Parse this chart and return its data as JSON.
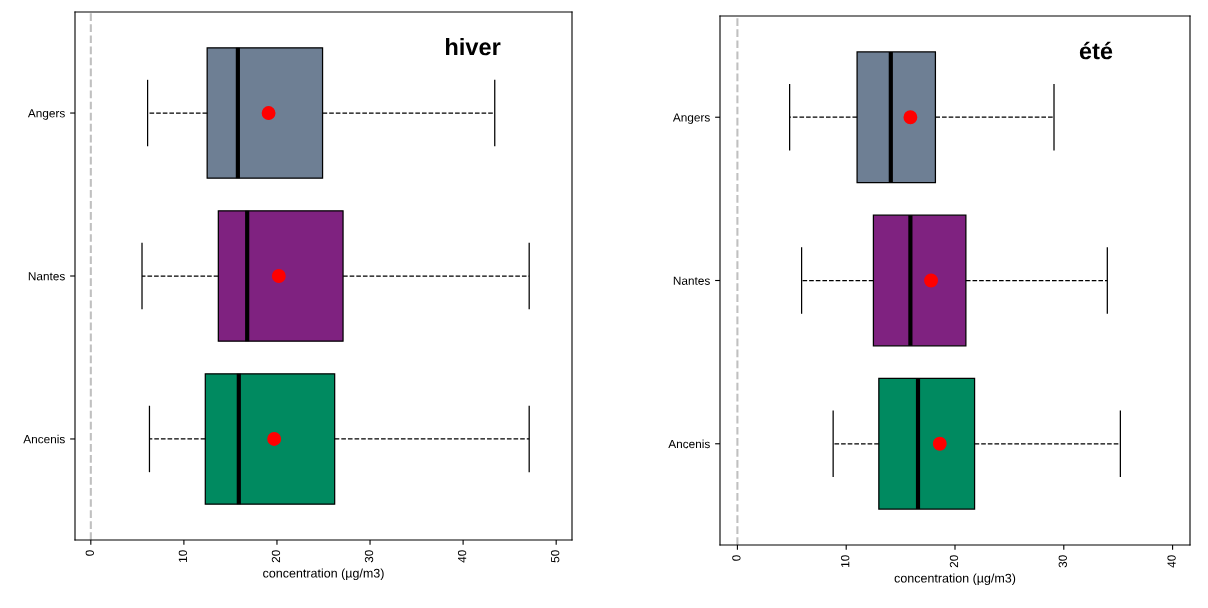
{
  "chart_data": [
    {
      "type": "box",
      "orientation": "horizontal",
      "xlabel": "concentration (µg/m3)",
      "annotations": [
        "hiver"
      ],
      "categories": [
        "Angers",
        "Nantes",
        "Ancenis"
      ],
      "colors": [
        "#6e7f94",
        "#7f2280",
        "#008a60"
      ],
      "boxes": [
        {
          "low": 6.1,
          "q1": 12.5,
          "median": 15.8,
          "q3": 24.9,
          "high": 43.4,
          "mean": 19.1
        },
        {
          "low": 5.5,
          "q1": 13.7,
          "median": 16.8,
          "q3": 27.1,
          "high": 47.1,
          "mean": 20.2
        },
        {
          "low": 6.3,
          "q1": 12.3,
          "median": 15.9,
          "q3": 26.2,
          "high": 47.1,
          "mean": 19.7
        }
      ],
      "xlim": [
        -1.7,
        51.7
      ],
      "xticks": [
        0,
        10,
        20,
        30,
        40,
        50
      ],
      "ref_lines": [
        {
          "axis": "x",
          "value": 0,
          "color": "#c0c0c0",
          "line_style": "dashed"
        }
      ]
    },
    {
      "type": "box",
      "orientation": "horizontal",
      "xlabel": "concentration (µg/m3)",
      "annotations": [
        "été"
      ],
      "categories": [
        "Angers",
        "Nantes",
        "Ancenis"
      ],
      "colors": [
        "#6e7f94",
        "#7f2280",
        "#008a60"
      ],
      "boxes": [
        {
          "low": 4.8,
          "q1": 11.0,
          "median": 14.1,
          "q3": 18.2,
          "high": 29.1,
          "mean": 15.9
        },
        {
          "low": 5.9,
          "q1": 12.5,
          "median": 15.9,
          "q3": 21.0,
          "high": 34.0,
          "mean": 17.8
        },
        {
          "low": 8.8,
          "q1": 13.0,
          "median": 16.6,
          "q3": 21.8,
          "high": 35.2,
          "mean": 18.6
        }
      ],
      "xlim": [
        -1.6,
        41.6
      ],
      "xticks": [
        0,
        10,
        20,
        30,
        40
      ],
      "ref_lines": [
        {
          "axis": "x",
          "value": 0,
          "color": "#c0c0c0",
          "line_style": "dashed"
        }
      ]
    }
  ]
}
